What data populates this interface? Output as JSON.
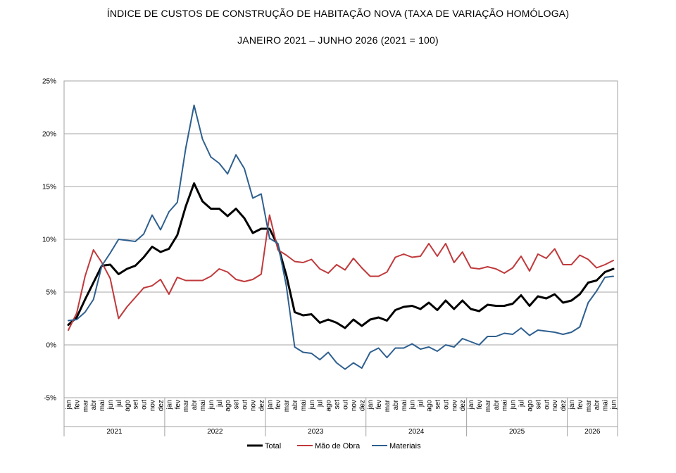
{
  "chart_data": {
    "type": "line",
    "title": "ÍNDICE DE CUSTOS DE CONSTRUÇÃO DE HABITAÇÃO NOVA (TAXA DE VARIAÇÃO HOMÓLOGA)",
    "subtitle": "JANEIRO 2021 – JUNHO 2026 (2021 = 100)",
    "xlabel": "",
    "ylabel": "",
    "ylim": [
      -5,
      25
    ],
    "yticks": [
      -5,
      0,
      5,
      10,
      15,
      20,
      25
    ],
    "ytick_labels": [
      "-5%",
      "0%",
      "5%",
      "10%",
      "15%",
      "20%",
      "25%"
    ],
    "grid": "horizontal",
    "legend_position": "bottom",
    "month_labels": [
      "jan",
      "fev",
      "mar",
      "abr",
      "mai",
      "jun",
      "jul",
      "ago",
      "set",
      "out",
      "nov",
      "dez"
    ],
    "years": [
      {
        "label": "2021",
        "months": 12
      },
      {
        "label": "2022",
        "months": 12
      },
      {
        "label": "2023",
        "months": 12
      },
      {
        "label": "2024",
        "months": 12
      },
      {
        "label": "2025",
        "months": 12
      },
      {
        "label": "2026",
        "months": 6
      }
    ],
    "series": [
      {
        "name": "Total",
        "color": "#000000",
        "width": 3,
        "values": [
          1.9,
          2.6,
          4.3,
          5.9,
          7.5,
          7.6,
          6.7,
          7.2,
          7.5,
          8.3,
          9.3,
          8.8,
          9.1,
          10.4,
          13.1,
          15.3,
          13.6,
          12.9,
          12.9,
          12.2,
          12.9,
          12.0,
          10.6,
          11.0,
          11.0,
          9.4,
          6.6,
          3.1,
          2.8,
          2.9,
          2.1,
          2.4,
          2.1,
          1.6,
          2.4,
          1.8,
          2.4,
          2.6,
          2.3,
          3.3,
          3.6,
          3.7,
          3.4,
          4.0,
          3.3,
          4.2,
          3.4,
          4.2,
          3.4,
          3.2,
          3.8,
          3.7,
          3.7,
          3.9,
          4.7,
          3.7,
          4.6,
          4.4,
          4.8,
          4.0,
          4.2,
          4.8,
          5.9,
          6.1,
          6.9,
          7.2
        ]
      },
      {
        "name": "Mão de Obra",
        "color": "#c0393b",
        "width": 2,
        "values": [
          1.4,
          3.0,
          6.5,
          9.0,
          7.8,
          6.3,
          2.5,
          3.6,
          4.5,
          5.4,
          5.6,
          6.2,
          4.8,
          6.4,
          6.1,
          6.1,
          6.1,
          6.5,
          7.2,
          6.9,
          6.2,
          6.0,
          6.2,
          6.7,
          12.3,
          9.0,
          8.5,
          7.9,
          7.8,
          8.1,
          7.2,
          6.8,
          7.6,
          7.1,
          8.2,
          7.3,
          6.5,
          6.5,
          6.9,
          8.3,
          8.6,
          8.3,
          8.4,
          9.6,
          8.4,
          9.6,
          7.8,
          8.8,
          7.3,
          7.2,
          7.4,
          7.2,
          6.8,
          7.3,
          8.4,
          7.0,
          8.6,
          8.2,
          9.1,
          7.6,
          7.6,
          8.5,
          8.1,
          7.3,
          7.6,
          8.0
        ]
      },
      {
        "name": "Materiais",
        "color": "#2e5f8f",
        "width": 2,
        "values": [
          2.3,
          2.4,
          3.1,
          4.3,
          7.5,
          8.7,
          10.0,
          9.9,
          9.8,
          10.5,
          12.3,
          10.9,
          12.6,
          13.5,
          18.6,
          22.7,
          19.5,
          17.8,
          17.2,
          16.2,
          18.0,
          16.7,
          13.9,
          14.3,
          10.1,
          9.6,
          5.6,
          -0.2,
          -0.7,
          -0.8,
          -1.4,
          -0.7,
          -1.7,
          -2.3,
          -1.7,
          -2.2,
          -0.7,
          -0.3,
          -1.2,
          -0.3,
          -0.3,
          0.1,
          -0.4,
          -0.2,
          -0.6,
          0.0,
          -0.2,
          0.6,
          0.3,
          0.0,
          0.8,
          0.8,
          1.1,
          1.0,
          1.6,
          0.9,
          1.4,
          1.3,
          1.2,
          1.0,
          1.2,
          1.7,
          4.0,
          5.1,
          6.4,
          6.5
        ]
      }
    ]
  }
}
